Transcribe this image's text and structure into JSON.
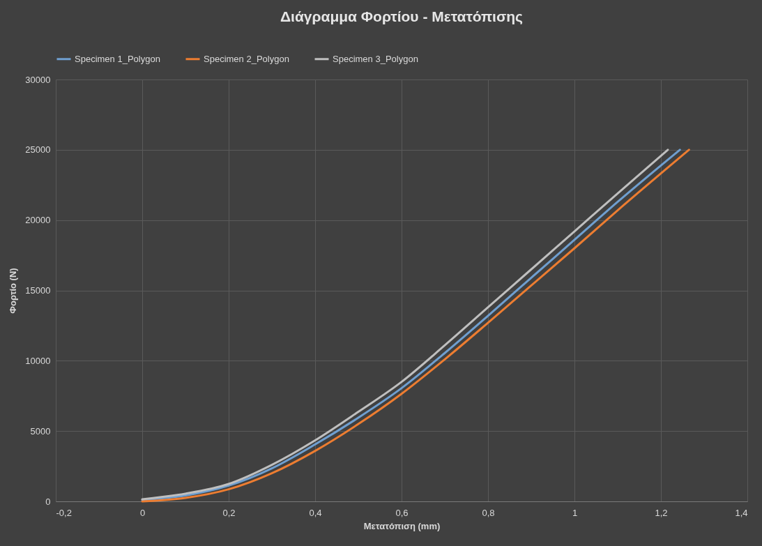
{
  "chart_data": {
    "type": "line",
    "title": "Διάγραμμα Φορτίου - Μετατόπισης",
    "xlabel": "Μετατόπιση (mm)",
    "ylabel": "Φορτίο (N)",
    "series": [
      {
        "name": "Specimen 1_Polygon",
        "color": "#6f9fd0",
        "x": [
          0,
          0.1,
          0.2,
          0.3,
          0.4,
          0.5,
          0.6,
          0.7,
          0.8,
          0.9,
          1.0,
          1.1,
          1.244
        ],
        "values": [
          100,
          420,
          1120,
          2350,
          4050,
          5950,
          8050,
          10550,
          13200,
          15900,
          18600,
          21300,
          25000
        ]
      },
      {
        "name": "Specimen 2_Polygon",
        "color": "#ed7d31",
        "x": [
          0,
          0.1,
          0.2,
          0.3,
          0.4,
          0.5,
          0.6,
          0.7,
          0.8,
          0.9,
          1.0,
          1.1,
          1.265
        ],
        "values": [
          0,
          250,
          860,
          2000,
          3590,
          5500,
          7650,
          10100,
          12700,
          15350,
          18000,
          20700,
          25000
        ]
      },
      {
        "name": "Specimen 3_Polygon",
        "color": "#bfbfbf",
        "x": [
          0,
          0.1,
          0.2,
          0.3,
          0.4,
          0.5,
          0.6,
          0.7,
          0.8,
          0.9,
          1.0,
          1.1,
          1.216
        ],
        "values": [
          150,
          550,
          1240,
          2600,
          4340,
          6370,
          8500,
          11100,
          13800,
          16500,
          19200,
          21900,
          25000
        ]
      }
    ],
    "xlim": [
      -0.2,
      1.4
    ],
    "xticks": [
      {
        "value": -0.2,
        "label": "-0,2"
      },
      0,
      {
        "value": 0.2,
        "label": "0,2"
      },
      {
        "value": 0.4,
        "label": "0,4"
      },
      {
        "value": 0.6,
        "label": "0,6"
      },
      {
        "value": 0.8,
        "label": "0,8"
      },
      1,
      {
        "value": 1.2,
        "label": "1,2"
      },
      {
        "value": 1.4,
        "label": "1,4"
      }
    ],
    "ylim": [
      0,
      30000
    ],
    "yticks": [
      0,
      5000,
      10000,
      15000,
      20000,
      25000,
      30000
    ],
    "grid": true,
    "legend": "top",
    "marker": "none",
    "line_style": "solid"
  }
}
